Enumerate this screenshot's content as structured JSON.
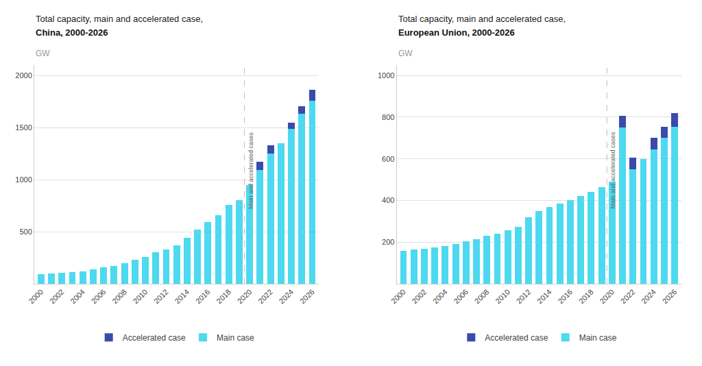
{
  "chart_data": [
    {
      "type": "bar",
      "stacked": true,
      "grid": true,
      "legend": "bottom",
      "title": "Total capacity, main and accelerated case,",
      "subtitle": "China, 2000-2026",
      "ylabel": "GW",
      "categories": [
        "2000",
        null,
        "2002",
        null,
        "2004",
        null,
        "2006",
        null,
        "2008",
        null,
        "2010",
        null,
        "2012",
        null,
        "2014",
        null,
        "2016",
        null,
        "2018",
        null,
        "2020",
        null,
        "2022",
        null,
        "2024",
        null,
        "2026"
      ],
      "series": [
        {
          "name": "Main case",
          "color": "#4DD9F0",
          "values": [
            95,
            100,
            105,
            110,
            120,
            140,
            155,
            170,
            200,
            230,
            260,
            300,
            330,
            370,
            440,
            520,
            590,
            660,
            760,
            800,
            950,
            1095,
            1250,
            1350,
            1490,
            1630,
            1760
          ]
        },
        {
          "name": "Accelerated case",
          "color": "#3A4BAA",
          "values": [
            0,
            0,
            0,
            0,
            0,
            0,
            0,
            0,
            0,
            0,
            0,
            0,
            0,
            0,
            0,
            0,
            0,
            0,
            0,
            0,
            0,
            75,
            80,
            0,
            55,
            75,
            105
          ]
        }
      ],
      "ylim": [
        0,
        2100
      ],
      "yticks": [
        500,
        1000,
        1500,
        2000
      ],
      "annotations": [
        {
          "text": "Main and accelerated cases",
          "x": "2020"
        }
      ]
    },
    {
      "type": "bar",
      "stacked": true,
      "grid": true,
      "legend": "bottom",
      "title": "Total capacity, main and accelerated case,",
      "subtitle": "European Union, 2000-2026",
      "ylabel": "GW",
      "categories": [
        "2000",
        null,
        "2002",
        null,
        "2004",
        null,
        "2006",
        null,
        "2008",
        null,
        "2010",
        null,
        "2012",
        null,
        "2014",
        null,
        "2016",
        null,
        "2018",
        null,
        "2020",
        null,
        "2022",
        null,
        "2024",
        null,
        "2026"
      ],
      "series": [
        {
          "name": "Main case",
          "color": "#4DD9F0",
          "values": [
            158,
            163,
            168,
            175,
            182,
            190,
            205,
            215,
            230,
            240,
            258,
            272,
            318,
            348,
            368,
            385,
            400,
            420,
            440,
            465,
            490,
            750,
            550,
            598,
            645,
            700,
            755
          ]
        },
        {
          "name": "Accelerated case",
          "color": "#3A4BAA",
          "values": [
            0,
            0,
            0,
            0,
            0,
            0,
            0,
            0,
            0,
            0,
            0,
            0,
            0,
            0,
            0,
            0,
            0,
            0,
            0,
            0,
            0,
            55,
            55,
            0,
            55,
            55,
            65
          ]
        }
      ],
      "ylim": [
        0,
        1050
      ],
      "yticks": [
        200,
        400,
        600,
        800,
        1000
      ],
      "annotations": [
        {
          "text": "Main and accelerated cases",
          "x": "2020"
        }
      ]
    }
  ]
}
